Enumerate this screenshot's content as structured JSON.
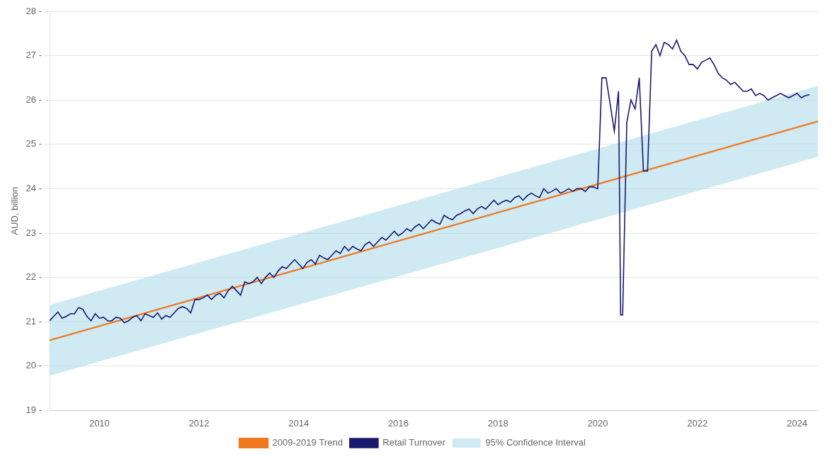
{
  "chart_data": {
    "type": "line",
    "ylabel": "AUD, billion",
    "xlim": [
      2009.0,
      2024.42
    ],
    "xticks": [
      2010,
      2012,
      2014,
      2016,
      2018,
      2020,
      2022,
      2024
    ],
    "ylim": [
      19,
      28
    ],
    "yticks": [
      {
        "value": 19,
        "label": "19 -"
      },
      {
        "value": 20,
        "label": "20 -"
      },
      {
        "value": 21,
        "label": "21 -"
      },
      {
        "value": 22,
        "label": "22 -"
      },
      {
        "value": 23,
        "label": "23 -"
      },
      {
        "value": 24,
        "label": "24 -"
      },
      {
        "value": 25,
        "label": "25 -"
      },
      {
        "value": 26,
        "label": "26 -"
      },
      {
        "value": 27,
        "label": "27 -"
      },
      {
        "value": 28,
        "label": "28 -"
      }
    ],
    "grid": true,
    "legend": "bottom",
    "series": [
      {
        "name": "2009-2019 Trend",
        "type": "line",
        "color": "#f07820",
        "x": [
          2009.0,
          2024.42
        ],
        "values": [
          20.58,
          25.52
        ]
      },
      {
        "name": "Retail Turnover",
        "type": "line",
        "color": "#191970",
        "x": [
          2009.0,
          2009.083,
          2009.167,
          2009.25,
          2009.333,
          2009.417,
          2009.5,
          2009.583,
          2009.667,
          2009.75,
          2009.833,
          2009.917,
          2010.0,
          2010.083,
          2010.167,
          2010.25,
          2010.333,
          2010.417,
          2010.5,
          2010.583,
          2010.667,
          2010.75,
          2010.833,
          2010.917,
          2011.0,
          2011.083,
          2011.167,
          2011.25,
          2011.333,
          2011.417,
          2011.5,
          2011.583,
          2011.667,
          2011.75,
          2011.833,
          2011.917,
          2012.0,
          2012.083,
          2012.167,
          2012.25,
          2012.333,
          2012.417,
          2012.5,
          2012.583,
          2012.667,
          2012.75,
          2012.833,
          2012.917,
          2013.0,
          2013.083,
          2013.167,
          2013.25,
          2013.333,
          2013.417,
          2013.5,
          2013.583,
          2013.667,
          2013.75,
          2013.833,
          2013.917,
          2014.0,
          2014.083,
          2014.167,
          2014.25,
          2014.333,
          2014.417,
          2014.5,
          2014.583,
          2014.667,
          2014.75,
          2014.833,
          2014.917,
          2015.0,
          2015.083,
          2015.167,
          2015.25,
          2015.333,
          2015.417,
          2015.5,
          2015.583,
          2015.667,
          2015.75,
          2015.833,
          2015.917,
          2016.0,
          2016.083,
          2016.167,
          2016.25,
          2016.333,
          2016.417,
          2016.5,
          2016.583,
          2016.667,
          2016.75,
          2016.833,
          2016.917,
          2017.0,
          2017.083,
          2017.167,
          2017.25,
          2017.333,
          2017.417,
          2017.5,
          2017.583,
          2017.667,
          2017.75,
          2017.833,
          2017.917,
          2018.0,
          2018.083,
          2018.167,
          2018.25,
          2018.333,
          2018.417,
          2018.5,
          2018.583,
          2018.667,
          2018.75,
          2018.833,
          2018.917,
          2019.0,
          2019.083,
          2019.167,
          2019.25,
          2019.333,
          2019.417,
          2019.5,
          2019.583,
          2019.667,
          2019.75,
          2019.833,
          2019.917,
          2020.0,
          2020.083,
          2020.167,
          2020.25,
          2020.333,
          2020.417,
          2020.46,
          2020.5,
          2020.583,
          2020.667,
          2020.75,
          2020.833,
          2020.917,
          2021.0,
          2021.083,
          2021.167,
          2021.25,
          2021.333,
          2021.417,
          2021.5,
          2021.583,
          2021.667,
          2021.75,
          2021.833,
          2021.917,
          2022.0,
          2022.083,
          2022.167,
          2022.25,
          2022.333,
          2022.417,
          2022.5,
          2022.583,
          2022.667,
          2022.75,
          2022.833,
          2022.917,
          2023.0,
          2023.083,
          2023.167,
          2023.25,
          2023.333,
          2023.417,
          2023.5,
          2023.583,
          2023.667,
          2023.75,
          2023.833,
          2023.917,
          2024.0,
          2024.083,
          2024.167,
          2024.25
        ],
        "values": [
          21.02,
          21.12,
          21.22,
          21.08,
          21.12,
          21.18,
          21.18,
          21.32,
          21.28,
          21.12,
          21.02,
          21.18,
          21.08,
          21.1,
          21.02,
          21.02,
          21.1,
          21.08,
          20.98,
          21.02,
          21.1,
          21.14,
          21.02,
          21.18,
          21.14,
          21.1,
          21.2,
          21.06,
          21.14,
          21.1,
          21.2,
          21.3,
          21.34,
          21.3,
          21.2,
          21.5,
          21.5,
          21.54,
          21.6,
          21.5,
          21.6,
          21.64,
          21.54,
          21.7,
          21.8,
          21.7,
          21.6,
          21.9,
          21.86,
          21.9,
          22.0,
          21.86,
          22.0,
          22.1,
          22.0,
          22.14,
          22.24,
          22.2,
          22.3,
          22.4,
          22.3,
          22.2,
          22.34,
          22.4,
          22.3,
          22.5,
          22.44,
          22.4,
          22.5,
          22.6,
          22.54,
          22.7,
          22.6,
          22.7,
          22.64,
          22.6,
          22.74,
          22.8,
          22.7,
          22.8,
          22.9,
          22.84,
          22.94,
          23.04,
          22.94,
          23.0,
          23.1,
          23.04,
          23.14,
          23.2,
          23.1,
          23.2,
          23.3,
          23.24,
          23.2,
          23.4,
          23.34,
          23.3,
          23.4,
          23.44,
          23.5,
          23.54,
          23.44,
          23.54,
          23.6,
          23.54,
          23.64,
          23.74,
          23.64,
          23.7,
          23.74,
          23.7,
          23.8,
          23.84,
          23.74,
          23.84,
          23.9,
          23.84,
          23.8,
          24.0,
          23.9,
          23.94,
          24.0,
          23.9,
          23.94,
          24.0,
          23.94,
          24.0,
          24.0,
          23.94,
          24.04,
          24.04,
          24.0,
          26.5,
          26.5,
          25.9,
          25.3,
          26.2,
          21.15,
          21.15,
          25.5,
          26.0,
          25.8,
          26.5,
          24.4,
          24.4,
          27.1,
          27.25,
          27.0,
          27.3,
          27.25,
          27.15,
          27.35,
          27.1,
          27.0,
          26.8,
          26.8,
          26.7,
          26.85,
          26.9,
          26.95,
          26.8,
          26.6,
          26.5,
          26.45,
          26.35,
          26.4,
          26.3,
          26.2,
          26.2,
          26.25,
          26.1,
          26.15,
          26.1,
          26.0,
          26.05,
          26.1,
          26.15,
          26.1,
          26.05,
          26.1,
          26.15,
          26.05,
          26.1,
          26.12
        ]
      },
      {
        "name": "95% Confidence Interval",
        "type": "area",
        "color": "#a8d8e8",
        "x": [
          2009.0,
          2024.42
        ],
        "lower": [
          19.78,
          24.72
        ],
        "upper": [
          21.38,
          26.32
        ]
      }
    ]
  }
}
